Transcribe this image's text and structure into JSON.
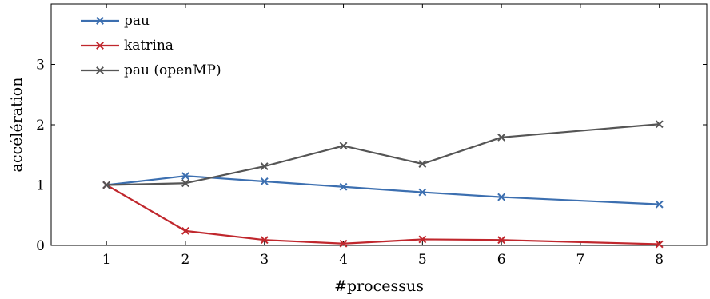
{
  "chart_data": {
    "type": "line",
    "title": "",
    "xlabel": "#processus",
    "ylabel": "accélération",
    "xlim": [
      0.3,
      8.6
    ],
    "ylim": [
      0,
      4
    ],
    "x_ticks": [
      1,
      2,
      3,
      4,
      5,
      6,
      7,
      8
    ],
    "y_ticks": [
      0,
      1,
      2,
      3
    ],
    "grid": false,
    "legend_position": "top-left",
    "x": [
      1,
      2,
      3,
      4,
      5,
      6,
      8
    ],
    "series": [
      {
        "name": "pau",
        "color": "#3c6fb0",
        "marker": "x",
        "values": [
          1.0,
          1.15,
          1.06,
          0.97,
          0.88,
          0.8,
          0.68
        ]
      },
      {
        "name": "katrina",
        "color": "#c0272d",
        "marker": "x",
        "values": [
          1.0,
          0.24,
          0.09,
          0.03,
          0.1,
          0.09,
          0.02
        ]
      },
      {
        "name": "pau (openMP)",
        "color": "#555555",
        "marker": "x",
        "values": [
          1.0,
          1.03,
          1.31,
          1.65,
          1.35,
          1.79,
          2.01
        ]
      }
    ]
  }
}
